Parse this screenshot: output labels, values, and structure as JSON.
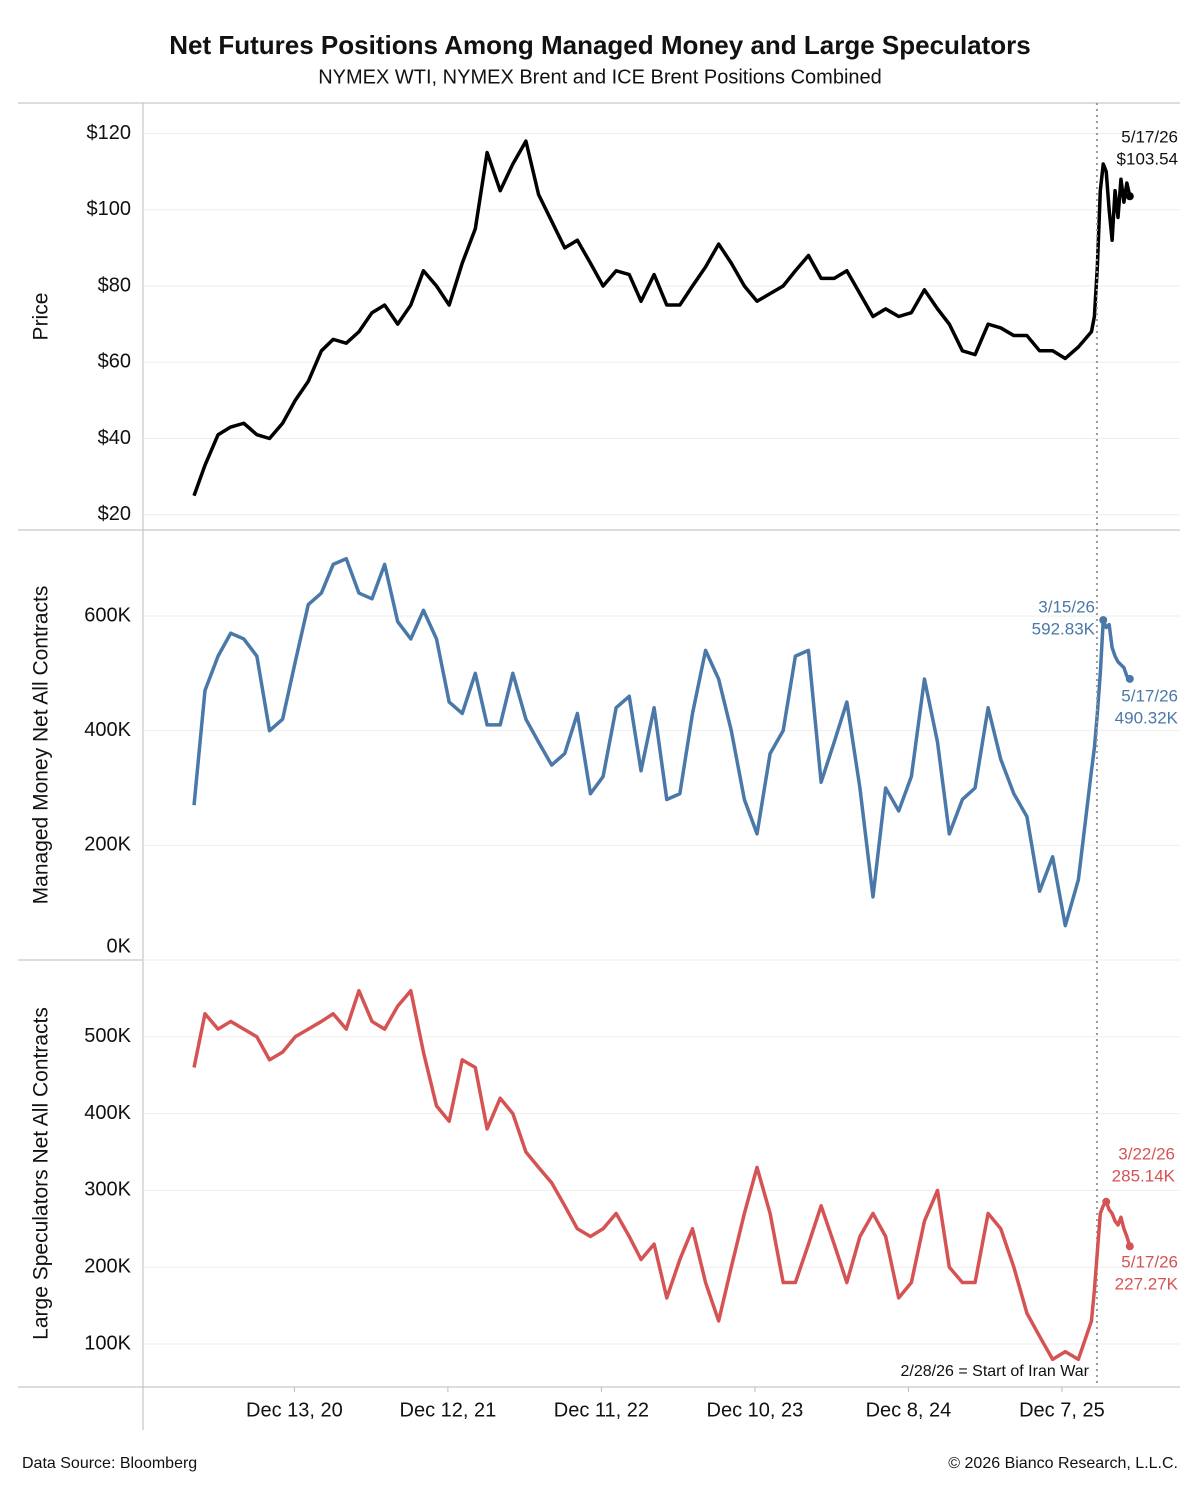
{
  "header": {
    "title": "Net Futures Positions Among Managed Money and Large Speculators",
    "subtitle": "NYMEX WTI, NYMEX Brent and ICE Brent Positions Combined"
  },
  "footer": {
    "source": "Data Source: Bloomberg",
    "copyright": "© 2026 Bianco Research, L.L.C."
  },
  "chart_data": [
    {
      "type": "line",
      "y_label": "Price",
      "ylim": [
        16,
        128
      ],
      "yticks": [
        {
          "value": 20,
          "label": "$20"
        },
        {
          "value": 40,
          "label": "$40"
        },
        {
          "value": 60,
          "label": "$60"
        },
        {
          "value": 80,
          "label": "$80"
        },
        {
          "value": 100,
          "label": "$100"
        },
        {
          "value": 120,
          "label": "$120"
        }
      ],
      "grid": true,
      "xlim": [
        "2019-12-20",
        "2026-09-13"
      ],
      "x": [
        "2020-04-19",
        "2020-05-15",
        "2020-06-15",
        "2020-07-15",
        "2020-08-15",
        "2020-09-15",
        "2020-10-15",
        "2020-11-15",
        "2020-12-15",
        "2021-01-15",
        "2021-02-15",
        "2021-03-15",
        "2021-04-15",
        "2021-05-15",
        "2021-06-15",
        "2021-07-15",
        "2021-08-15",
        "2021-09-15",
        "2021-10-15",
        "2021-11-15",
        "2021-12-15",
        "2022-01-15",
        "2022-02-15",
        "2022-03-15",
        "2022-04-15",
        "2022-05-15",
        "2022-06-15",
        "2022-07-15",
        "2022-08-15",
        "2022-09-15",
        "2022-10-15",
        "2022-11-15",
        "2022-12-15",
        "2023-01-15",
        "2023-02-15",
        "2023-03-15",
        "2023-04-15",
        "2023-05-15",
        "2023-06-15",
        "2023-07-15",
        "2023-08-15",
        "2023-09-15",
        "2023-10-15",
        "2023-11-15",
        "2023-12-15",
        "2024-01-15",
        "2024-02-15",
        "2024-03-15",
        "2024-04-15",
        "2024-05-15",
        "2024-06-15",
        "2024-07-15",
        "2024-08-15",
        "2024-09-15",
        "2024-10-15",
        "2024-11-15",
        "2024-12-15",
        "2025-01-15",
        "2025-02-15",
        "2025-03-15",
        "2025-04-15",
        "2025-05-15",
        "2025-06-15",
        "2025-07-15",
        "2025-08-15",
        "2025-09-15",
        "2025-10-15",
        "2025-11-15",
        "2025-12-15",
        "2026-01-15",
        "2026-02-15",
        "2026-02-22",
        "2026-03-01",
        "2026-03-08",
        "2026-03-15",
        "2026-03-22",
        "2026-03-29",
        "2026-04-05",
        "2026-04-12",
        "2026-04-19",
        "2026-04-26",
        "2026-05-03",
        "2026-05-10",
        "2026-05-17"
      ],
      "series": [
        {
          "name": "Price",
          "color": "#000000",
          "values": [
            25,
            33,
            41,
            43,
            44,
            41,
            40,
            44,
            50,
            55,
            63,
            66,
            65,
            68,
            73,
            75,
            70,
            75,
            84,
            80,
            75,
            86,
            95,
            115,
            105,
            112,
            118,
            104,
            97,
            90,
            92,
            86,
            80,
            84,
            83,
            76,
            83,
            75,
            75,
            80,
            85,
            91,
            86,
            80,
            76,
            78,
            80,
            84,
            88,
            82,
            82,
            84,
            78,
            72,
            74,
            72,
            73,
            79,
            74,
            70,
            63,
            62,
            70,
            69,
            67,
            67,
            63,
            63,
            61,
            64,
            68,
            72,
            85,
            105,
            112,
            110,
            100,
            92,
            105,
            98,
            108,
            102,
            107,
            103.54
          ]
        }
      ],
      "annotations": [
        {
          "x": "2026-05-17",
          "lines": [
            "5/17/26",
            "$103.54"
          ]
        }
      ]
    },
    {
      "type": "line",
      "y_label": "Managed Money Net All Contracts",
      "ylim": [
        0,
        750000
      ],
      "yticks": [
        {
          "value": 0,
          "label": "0K"
        },
        {
          "value": 200000,
          "label": "200K"
        },
        {
          "value": 400000,
          "label": "400K"
        },
        {
          "value": 600000,
          "label": "600K"
        }
      ],
      "grid": true,
      "xlim": [
        "2019-12-20",
        "2026-09-13"
      ],
      "x": [
        "2020-04-19",
        "2020-05-15",
        "2020-06-15",
        "2020-07-15",
        "2020-08-15",
        "2020-09-15",
        "2020-10-15",
        "2020-11-15",
        "2020-12-15",
        "2021-01-15",
        "2021-02-15",
        "2021-03-15",
        "2021-04-15",
        "2021-05-15",
        "2021-06-15",
        "2021-07-15",
        "2021-08-15",
        "2021-09-15",
        "2021-10-15",
        "2021-11-15",
        "2021-12-15",
        "2022-01-15",
        "2022-02-15",
        "2022-03-15",
        "2022-04-15",
        "2022-05-15",
        "2022-06-15",
        "2022-07-15",
        "2022-08-15",
        "2022-09-15",
        "2022-10-15",
        "2022-11-15",
        "2022-12-15",
        "2023-01-15",
        "2023-02-15",
        "2023-03-15",
        "2023-04-15",
        "2023-05-15",
        "2023-06-15",
        "2023-07-15",
        "2023-08-15",
        "2023-09-15",
        "2023-10-15",
        "2023-11-15",
        "2023-12-15",
        "2024-01-15",
        "2024-02-15",
        "2024-03-15",
        "2024-04-15",
        "2024-05-15",
        "2024-06-15",
        "2024-07-15",
        "2024-08-15",
        "2024-09-15",
        "2024-10-15",
        "2024-11-15",
        "2024-12-15",
        "2025-01-15",
        "2025-02-15",
        "2025-03-15",
        "2025-04-15",
        "2025-05-15",
        "2025-06-15",
        "2025-07-15",
        "2025-08-15",
        "2025-09-15",
        "2025-10-15",
        "2025-11-15",
        "2025-12-15",
        "2026-01-15",
        "2026-02-15",
        "2026-02-22",
        "2026-03-01",
        "2026-03-08",
        "2026-03-15",
        "2026-03-22",
        "2026-03-29",
        "2026-04-05",
        "2026-04-12",
        "2026-04-19",
        "2026-04-26",
        "2026-05-03",
        "2026-05-10",
        "2026-05-17"
      ],
      "series": [
        {
          "name": "Managed Money Net All Contracts",
          "color": "#4a78a8",
          "values": [
            270000,
            470000,
            530000,
            570000,
            560000,
            530000,
            400000,
            420000,
            520000,
            620000,
            640000,
            690000,
            700000,
            640000,
            630000,
            690000,
            590000,
            560000,
            610000,
            560000,
            450000,
            430000,
            500000,
            410000,
            410000,
            500000,
            420000,
            380000,
            340000,
            360000,
            430000,
            290000,
            320000,
            440000,
            460000,
            330000,
            440000,
            280000,
            290000,
            430000,
            540000,
            490000,
            400000,
            280000,
            220000,
            360000,
            400000,
            530000,
            540000,
            310000,
            380000,
            450000,
            300000,
            110000,
            300000,
            260000,
            320000,
            490000,
            380000,
            220000,
            280000,
            300000,
            440000,
            350000,
            290000,
            250000,
            120000,
            180000,
            60000,
            140000,
            330000,
            370000,
            430000,
            500000,
            592830,
            580000,
            585000,
            545000,
            530000,
            520000,
            515000,
            510000,
            495000,
            490320
          ]
        }
      ],
      "annotations": [
        {
          "x": "2026-03-15",
          "lines": [
            "3/15/26",
            "592.83K"
          ]
        },
        {
          "x": "2026-05-17",
          "lines": [
            "5/17/26",
            "490.32K"
          ]
        }
      ]
    },
    {
      "type": "line",
      "y_label": "Large Speculators Net All Contracts",
      "ylim": [
        44000,
        600000
      ],
      "yticks": [
        {
          "value": 100000,
          "label": "100K"
        },
        {
          "value": 200000,
          "label": "200K"
        },
        {
          "value": 300000,
          "label": "300K"
        },
        {
          "value": 400000,
          "label": "400K"
        },
        {
          "value": 500000,
          "label": "500K"
        }
      ],
      "grid": true,
      "xlim": [
        "2019-12-20",
        "2026-09-13"
      ],
      "xticks": [
        {
          "value": "2020-12-13",
          "label": "Dec 13, 20"
        },
        {
          "value": "2021-12-12",
          "label": "Dec 12, 21"
        },
        {
          "value": "2022-12-11",
          "label": "Dec 11, 22"
        },
        {
          "value": "2023-12-10",
          "label": "Dec 10, 23"
        },
        {
          "value": "2024-12-08",
          "label": "Dec 8, 24"
        },
        {
          "value": "2025-12-07",
          "label": "Dec 7, 25"
        }
      ],
      "x": [
        "2020-04-19",
        "2020-05-15",
        "2020-06-15",
        "2020-07-15",
        "2020-08-15",
        "2020-09-15",
        "2020-10-15",
        "2020-11-15",
        "2020-12-15",
        "2021-01-15",
        "2021-02-15",
        "2021-03-15",
        "2021-04-15",
        "2021-05-15",
        "2021-06-15",
        "2021-07-15",
        "2021-08-15",
        "2021-09-15",
        "2021-10-15",
        "2021-11-15",
        "2021-12-15",
        "2022-01-15",
        "2022-02-15",
        "2022-03-15",
        "2022-04-15",
        "2022-05-15",
        "2022-06-15",
        "2022-07-15",
        "2022-08-15",
        "2022-09-15",
        "2022-10-15",
        "2022-11-15",
        "2022-12-15",
        "2023-01-15",
        "2023-02-15",
        "2023-03-15",
        "2023-04-15",
        "2023-05-15",
        "2023-06-15",
        "2023-07-15",
        "2023-08-15",
        "2023-09-15",
        "2023-10-15",
        "2023-11-15",
        "2023-12-15",
        "2024-01-15",
        "2024-02-15",
        "2024-03-15",
        "2024-04-15",
        "2024-05-15",
        "2024-06-15",
        "2024-07-15",
        "2024-08-15",
        "2024-09-15",
        "2024-10-15",
        "2024-11-15",
        "2024-12-15",
        "2025-01-15",
        "2025-02-15",
        "2025-03-15",
        "2025-04-15",
        "2025-05-15",
        "2025-06-15",
        "2025-07-15",
        "2025-08-15",
        "2025-09-15",
        "2025-10-15",
        "2025-11-15",
        "2025-12-15",
        "2026-01-15",
        "2026-02-15",
        "2026-02-22",
        "2026-03-01",
        "2026-03-08",
        "2026-03-15",
        "2026-03-22",
        "2026-03-29",
        "2026-04-05",
        "2026-04-12",
        "2026-04-19",
        "2026-04-26",
        "2026-05-03",
        "2026-05-10",
        "2026-05-17"
      ],
      "series": [
        {
          "name": "Large Speculators Net All Contracts",
          "color": "#d65353",
          "values": [
            460000,
            530000,
            510000,
            520000,
            510000,
            500000,
            470000,
            480000,
            500000,
            510000,
            520000,
            530000,
            510000,
            560000,
            520000,
            510000,
            540000,
            560000,
            480000,
            410000,
            390000,
            470000,
            460000,
            380000,
            420000,
            400000,
            350000,
            330000,
            310000,
            280000,
            250000,
            240000,
            250000,
            270000,
            240000,
            210000,
            230000,
            160000,
            210000,
            250000,
            180000,
            130000,
            200000,
            270000,
            330000,
            270000,
            180000,
            180000,
            230000,
            280000,
            230000,
            180000,
            240000,
            270000,
            240000,
            160000,
            180000,
            260000,
            300000,
            200000,
            180000,
            180000,
            270000,
            250000,
            200000,
            140000,
            110000,
            80000,
            90000,
            80000,
            130000,
            170000,
            220000,
            270000,
            280000,
            285140,
            275000,
            270000,
            260000,
            255000,
            265000,
            250000,
            240000,
            227270
          ]
        }
      ],
      "annotations": [
        {
          "x": "2026-03-22",
          "lines": [
            "3/22/26",
            "285.14K"
          ]
        },
        {
          "x": "2026-05-17",
          "lines": [
            "5/17/26",
            "227.27K"
          ]
        }
      ],
      "event": {
        "x": "2026-02-28",
        "label": "2/28/26 = Start of Iran War"
      }
    }
  ]
}
